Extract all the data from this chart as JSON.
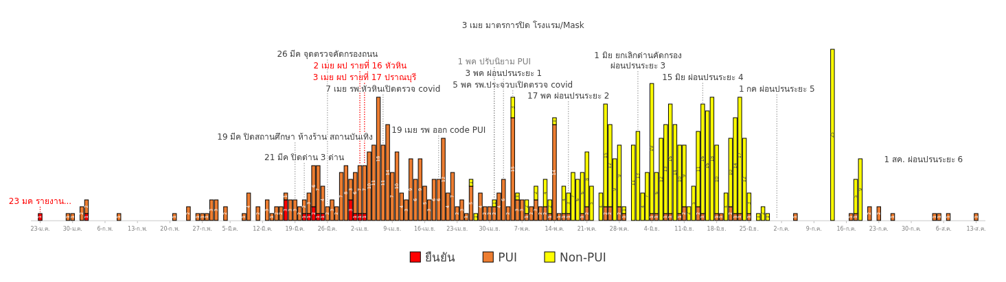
{
  "chart_data": {
    "type": "bar",
    "stacked": true,
    "data_labels": true,
    "legend": "bottom",
    "x": [
      "--01-23",
      "--01-29",
      "--01-30",
      "--02-01",
      "--02-02",
      "--02-09",
      "--02-21",
      "--02-24",
      "--02-26",
      "--02-27",
      "--02-28",
      "--03-01",
      "--03-02",
      "--03-04",
      "--03-08",
      "--03-09",
      "--03-11",
      "--03-13",
      "--03-14",
      "--03-15",
      "--03-16",
      "--03-17",
      "--03-18",
      "--03-19",
      "--03-20",
      "--03-21",
      "--03-22",
      "--03-23",
      "--03-24",
      "--03-25",
      "--03-26",
      "--03-27",
      "--03-28",
      "--03-29",
      "--03-30",
      "--03-31",
      "--04-01",
      "--04-02",
      "--04-03",
      "--04-04",
      "--04-05",
      "--04-06",
      "--04-07",
      "--04-08",
      "--04-09",
      "--04-10",
      "--04-11",
      "--04-12",
      "--04-13",
      "--04-14",
      "--04-15",
      "--04-16",
      "--04-17",
      "--04-18",
      "--04-19",
      "--04-20",
      "--04-21",
      "--04-22",
      "--04-23",
      "--04-24",
      "--04-25",
      "--04-26",
      "--04-27",
      "--04-28",
      "--04-29",
      "--04-30",
      "--05-01",
      "--05-02",
      "--05-03",
      "--05-04",
      "--05-05",
      "--05-06",
      "--05-07",
      "--05-08",
      "--05-09",
      "--05-10",
      "--05-11",
      "--05-12",
      "--05-13",
      "--05-14",
      "--05-15",
      "--05-16",
      "--05-17",
      "--05-18",
      "--05-19",
      "--05-20",
      "--05-21",
      "--05-22",
      "--05-24",
      "--05-25",
      "--05-26",
      "--05-27",
      "--05-28",
      "--05-29",
      "--05-31",
      "--06-01",
      "--06-02",
      "--06-03",
      "--06-04",
      "--06-05",
      "--06-06",
      "--06-07",
      "--06-08",
      "--06-09",
      "--06-10",
      "--06-11",
      "--06-12",
      "--06-13",
      "--06-14",
      "--06-15",
      "--06-16",
      "--06-17",
      "--06-18",
      "--06-19",
      "--06-20",
      "--06-21",
      "--06-22",
      "--06-23",
      "--06-24",
      "--06-25",
      "--06-27",
      "--06-28",
      "--06-29",
      "--07-05",
      "--07-13",
      "--07-17",
      "--07-18",
      "--07-19",
      "--07-21",
      "--07-23",
      "--07-26",
      "--08-04",
      "--08-05",
      "--08-07",
      "--08-13"
    ],
    "series": [
      {
        "name": "ยืนยัน",
        "color": "#ff0000",
        "values": [
          1,
          null,
          null,
          null,
          1,
          null,
          null,
          null,
          null,
          null,
          null,
          null,
          null,
          null,
          null,
          null,
          null,
          null,
          null,
          null,
          null,
          3,
          null,
          null,
          null,
          1,
          1,
          2,
          1,
          1,
          null,
          null,
          null,
          null,
          null,
          3,
          1,
          1,
          1,
          null,
          null,
          null,
          null,
          null,
          null,
          null,
          null,
          null,
          null,
          null,
          null,
          null,
          null,
          null,
          null,
          null,
          null,
          null,
          null,
          null,
          null,
          null,
          null,
          null,
          null,
          null,
          null,
          null,
          null,
          null,
          null,
          null,
          null,
          null,
          null,
          null,
          null,
          null,
          null,
          null,
          null,
          null,
          null,
          null,
          null,
          null,
          null,
          null,
          null,
          null,
          null,
          null,
          null,
          null,
          null,
          null,
          null,
          null,
          null,
          null,
          null,
          null,
          null,
          null,
          null,
          null,
          null,
          null,
          null,
          null,
          null,
          null,
          null,
          null,
          null,
          null,
          null,
          null,
          null,
          null,
          null,
          null,
          null,
          null,
          null,
          null,
          null,
          null,
          null,
          null,
          null,
          null,
          null,
          null,
          null
        ]
      },
      {
        "name": "PUI",
        "color": "#ed7d31",
        "values": [
          null,
          1,
          1,
          2,
          2,
          1,
          1,
          2,
          1,
          1,
          1,
          3,
          3,
          2,
          1,
          4,
          2,
          3,
          1,
          2,
          2,
          1,
          3,
          3,
          2,
          2,
          3,
          6,
          7,
          4,
          2,
          3,
          2,
          7,
          8,
          3,
          6,
          7,
          7,
          10,
          11,
          18,
          11,
          14,
          7,
          10,
          4,
          3,
          9,
          6,
          9,
          5,
          3,
          6,
          6,
          12,
          4,
          7,
          2,
          3,
          1,
          5,
          null,
          4,
          2,
          2,
          2,
          4,
          6,
          2,
          15,
          3,
          3,
          1,
          2,
          3,
          2,
          2,
          1,
          14,
          1,
          1,
          1,
          null,
          null,
          1,
          2,
          null,
          null,
          2,
          2,
          null,
          2,
          1,
          null,
          null,
          null,
          null,
          1,
          1,
          null,
          1,
          1,
          null,
          1,
          2,
          null,
          null,
          2,
          1,
          null,
          null,
          1,
          1,
          null,
          2,
          1,
          1,
          null,
          1,
          null,
          null,
          null,
          1,
          null,
          1,
          1,
          null,
          2,
          2,
          1,
          1,
          1,
          1,
          1
        ]
      },
      {
        "name": "Non-PUI",
        "color": "#ffff00",
        "values": [
          null,
          null,
          null,
          null,
          null,
          null,
          null,
          null,
          null,
          null,
          null,
          null,
          null,
          null,
          null,
          null,
          null,
          null,
          null,
          null,
          null,
          null,
          null,
          null,
          null,
          null,
          null,
          null,
          null,
          null,
          null,
          null,
          null,
          null,
          null,
          null,
          null,
          null,
          null,
          null,
          null,
          null,
          null,
          null,
          null,
          null,
          null,
          null,
          null,
          null,
          null,
          null,
          null,
          null,
          null,
          null,
          null,
          null,
          null,
          null,
          null,
          1,
          1,
          null,
          null,
          null,
          1,
          null,
          null,
          null,
          3,
          1,
          null,
          2,
          null,
          2,
          null,
          4,
          2,
          1,
          null,
          4,
          3,
          7,
          6,
          6,
          8,
          5,
          4,
          15,
          12,
          9,
          9,
          1,
          11,
          13,
          4,
          7,
          19,
          6,
          12,
          13,
          16,
          14,
          10,
          9,
          2,
          5,
          11,
          16,
          16,
          18,
          10,
          null,
          4,
          10,
          14,
          17,
          12,
          3,
          1,
          2,
          1,
          null,
          25,
          null,
          5,
          9,
          null,
          null,
          null,
          null,
          null,
          null,
          null
        ]
      }
    ],
    "xlim": [
      "--01-21",
      "--08-15"
    ],
    "xticks": [
      {
        "value": "--01-23",
        "label": "23-ม.ค."
      },
      {
        "value": "--01-30",
        "label": "30-ม.ค."
      },
      {
        "value": "--02-06",
        "label": "6-ก.พ."
      },
      {
        "value": "--02-13",
        "label": "13-ก.พ."
      },
      {
        "value": "--02-20",
        "label": "20-ก.พ."
      },
      {
        "value": "--02-27",
        "label": "27-ก.พ."
      },
      {
        "value": "--03-05",
        "label": "5-มี.ค."
      },
      {
        "value": "--03-12",
        "label": "12-มี.ค."
      },
      {
        "value": "--03-19",
        "label": "19-มี.ค."
      },
      {
        "value": "--03-26",
        "label": "26-มี.ค."
      },
      {
        "value": "--04-02",
        "label": "2-เม.ย."
      },
      {
        "value": "--04-09",
        "label": "9-เม.ย."
      },
      {
        "value": "--04-16",
        "label": "16-เม.ย."
      },
      {
        "value": "--04-23",
        "label": "23-เม.ย."
      },
      {
        "value": "--04-30",
        "label": "30-เม.ย."
      },
      {
        "value": "--05-07",
        "label": "7-พ.ค."
      },
      {
        "value": "--05-14",
        "label": "14-พ.ค."
      },
      {
        "value": "--05-21",
        "label": "21-พ.ค."
      },
      {
        "value": "--05-28",
        "label": "28-พ.ค."
      },
      {
        "value": "--06-04",
        "label": "4-มิ.ย."
      },
      {
        "value": "--06-11",
        "label": "11-มิ.ย."
      },
      {
        "value": "--06-18",
        "label": "18-มิ.ย."
      },
      {
        "value": "--06-25",
        "label": "25-มิ.ย."
      },
      {
        "value": "--07-02",
        "label": "2-ก.ค."
      },
      {
        "value": "--07-09",
        "label": "9-ก.ค."
      },
      {
        "value": "--07-16",
        "label": "16-ก.ค."
      },
      {
        "value": "--07-23",
        "label": "23-ก.ค."
      },
      {
        "value": "--07-30",
        "label": "30-ก.ค."
      },
      {
        "value": "--08-06",
        "label": "6-ส.ค."
      },
      {
        "value": "--08-13",
        "label": "13-ส.ค."
      }
    ],
    "ref_lines": [
      {
        "axis": "x",
        "value": "--01-23",
        "label": "23 มค รายงาน...",
        "color": "#ff0000",
        "line_style": "dotted"
      },
      {
        "axis": "x",
        "value": "--03-19",
        "label": "19 มีค ปิดสถานศึกษา ห้างร้าน สถานบันเทิง",
        "line_style": "dotted"
      },
      {
        "axis": "x",
        "value": "--03-21",
        "label": "21 มีค ปิดด่าน 3 ด่าน",
        "line_style": "dotted"
      },
      {
        "axis": "x",
        "value": "--03-26",
        "label": "26 มีค จุดตรวจคัดกรองถนน",
        "line_style": "dotted"
      },
      {
        "axis": "x",
        "value": "--04-02",
        "label": "2 เมย ผป รายที่ 16 หัวหิน",
        "color": "#ff0000",
        "line_style": "dotted"
      },
      {
        "axis": "x",
        "value": "--04-03",
        "label": "3 เมย ผป รายที่ 17 ปราณบุรี",
        "color": "#ff0000",
        "line_style": "dotted"
      },
      {
        "axis": "x",
        "value": "--04-07",
        "label": "7 เมย รพ.หัวหินเปิดตรวจ covid",
        "line_style": "dotted"
      },
      {
        "axis": "x",
        "value": "--04-19",
        "label": "19 เมย รพ ออก code PUI",
        "line_style": "dotted"
      },
      {
        "axis": "x",
        "value": "--05-01",
        "label": "1 พค ปรับนิยาม PUI",
        "color": "#7f7f7f",
        "line_style": "dotted"
      },
      {
        "axis": "x",
        "value": "--05-03",
        "label": "3 พค ผ่อนปรนระยะ 1",
        "line_style": "dotted"
      },
      {
        "axis": "x",
        "value": "--05-05",
        "label": "5 พค รพ.ประจวบเปิดตรวจ covid",
        "line_style": "dotted"
      },
      {
        "axis": "x",
        "value": "--05-17",
        "label": "17 พค ผ่อนปรนระยะ 2",
        "line_style": "dotted"
      },
      {
        "axis": "x",
        "value": "--06-01",
        "label": "1 มิย ยกเลิกด่านคัดกรอง\nผ่อนปรนระยะ 3",
        "line_style": "dotted"
      },
      {
        "axis": "x",
        "value": "--06-15",
        "label": "15 มิย ผ่อนปรนระยะ 4",
        "line_style": "dotted"
      },
      {
        "axis": "x",
        "value": "--07-01",
        "label": "1 กค ผ่อนปรนระยะ 5",
        "line_style": "dotted"
      }
    ],
    "annotations": [
      "3 เมย มาตรการปิด โรงแรม/Mask",
      "1 สค. ผ่อนปรนระยะ 6"
    ]
  }
}
